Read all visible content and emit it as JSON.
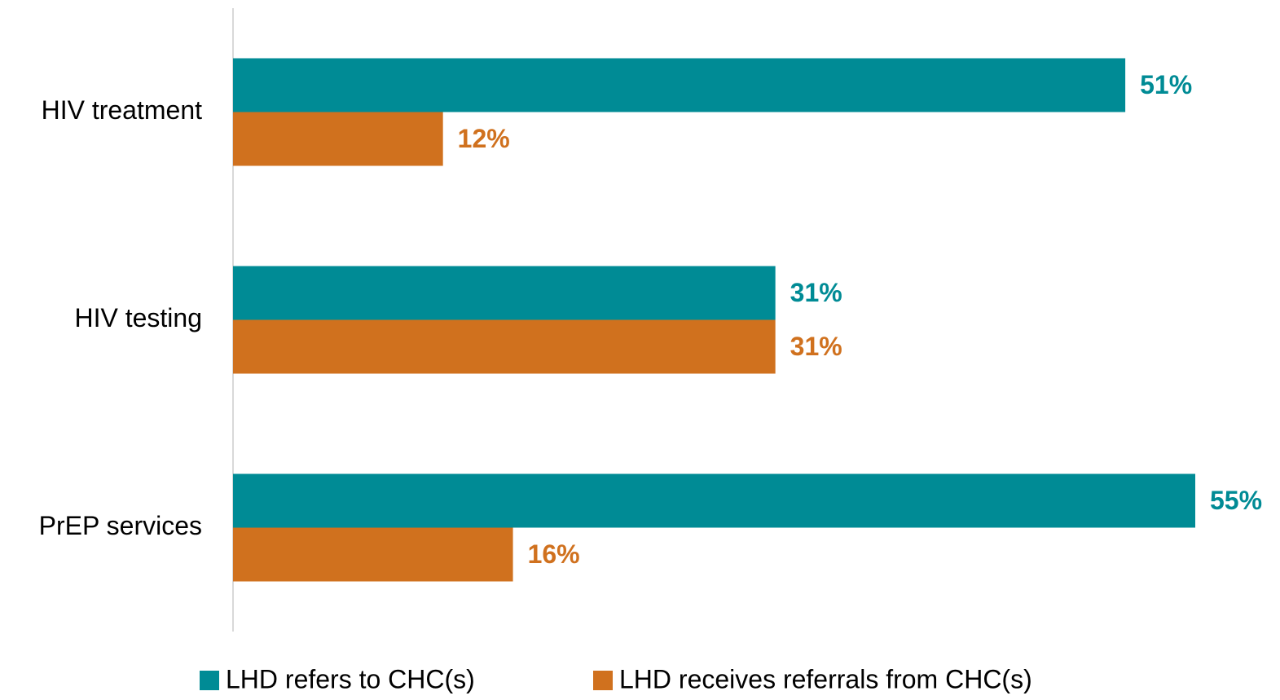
{
  "chart_data": {
    "type": "hbar",
    "categories": [
      "HIV treatment",
      "HIV testing",
      "PrEP services"
    ],
    "series": [
      {
        "name": "LHD refers to CHC(s)",
        "color": "#008b95",
        "values": [
          51,
          31,
          55
        ],
        "value_labels": [
          "51%",
          "31%",
          "55%"
        ]
      },
      {
        "name": "LHD receives referrals from CHC(s)",
        "color": "#d0711e",
        "values": [
          12,
          31,
          16
        ],
        "value_labels": [
          "12%",
          "31%",
          "16%"
        ]
      }
    ],
    "legend": "bottom"
  }
}
